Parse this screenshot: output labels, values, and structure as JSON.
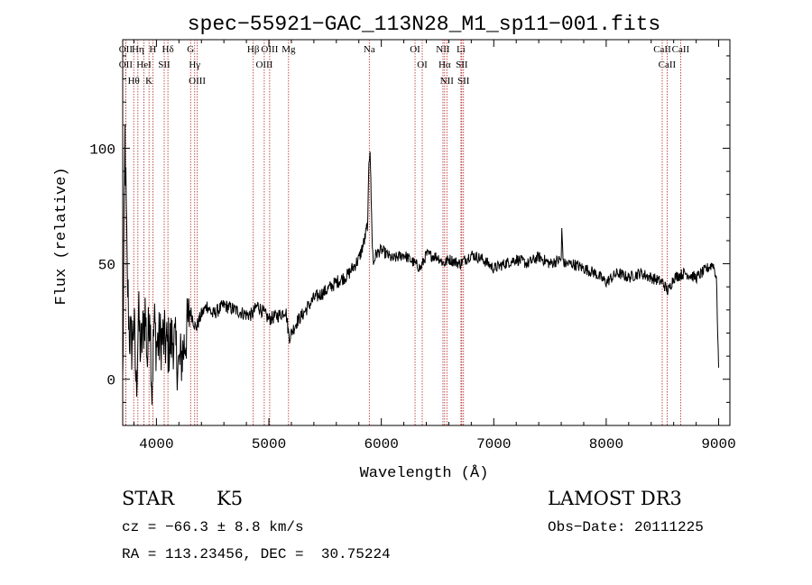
{
  "chart_data": {
    "type": "line",
    "title": "spec−55921−GAC_113N28_M1_sp11−001.fits",
    "xlabel": "Wavelength (Å)",
    "ylabel": "Flux (relative)",
    "xlim": [
      3700,
      9100
    ],
    "ylim": [
      -20,
      147
    ],
    "x_ticks": [
      4000,
      5000,
      6000,
      7000,
      8000,
      9000
    ],
    "x_tick_labels": [
      "4000",
      "5000",
      "6000",
      "7000",
      "8000",
      "9000"
    ],
    "y_ticks": [
      0,
      50,
      100
    ],
    "y_tick_labels": [
      "0",
      "50",
      "100"
    ],
    "series": [
      {
        "name": "spectrum",
        "color": "#000000",
        "x": [
          3700,
          3720,
          3740,
          3760,
          3780,
          3800,
          3820,
          3840,
          3860,
          3880,
          3900,
          3920,
          3940,
          3960,
          3980,
          4000,
          4050,
          4100,
          4150,
          4200,
          4250,
          4300,
          4350,
          4400,
          4450,
          4500,
          4600,
          4700,
          4800,
          4850,
          4900,
          5000,
          5100,
          5150,
          5180,
          5250,
          5300,
          5400,
          5500,
          5600,
          5700,
          5800,
          5850,
          5880,
          5890,
          5900,
          5910,
          5920,
          5930,
          5950,
          6000,
          6100,
          6200,
          6300,
          6350,
          6400,
          6500,
          6560,
          6600,
          6700,
          6800,
          6900,
          7000,
          7100,
          7200,
          7300,
          7400,
          7500,
          7600,
          7605,
          7620,
          7700,
          7800,
          7900,
          8000,
          8100,
          8200,
          8300,
          8400,
          8500,
          8550,
          8600,
          8700,
          8800,
          8900,
          8950,
          8980,
          9000
        ],
        "values": [
          -3,
          105,
          45,
          20,
          15,
          25,
          -5,
          28,
          12,
          20,
          30,
          8,
          35,
          -5,
          25,
          15,
          18,
          14,
          18,
          5,
          15,
          30,
          22,
          28,
          32,
          28,
          32,
          30,
          28,
          28,
          32,
          26,
          28,
          30,
          18,
          25,
          28,
          35,
          38,
          42,
          45,
          52,
          60,
          68,
          95,
          100,
          78,
          58,
          50,
          54,
          56,
          52,
          54,
          50,
          48,
          54,
          53,
          50,
          52,
          50,
          54,
          52,
          48,
          50,
          52,
          50,
          53,
          50,
          52,
          65,
          50,
          50,
          48,
          46,
          42,
          46,
          44,
          46,
          44,
          42,
          38,
          44,
          46,
          44,
          48,
          50,
          44,
          5
        ]
      }
    ],
    "lines": [
      {
        "name": "OII",
        "wavelength": 3727
      },
      {
        "name": "Hθ",
        "wavelength": 3798
      },
      {
        "name": "OII",
        "wavelength": 3727
      },
      {
        "name": "HeI",
        "wavelength": 3889
      },
      {
        "name": "Hη",
        "wavelength": 3835
      },
      {
        "name": "K",
        "wavelength": 3934
      },
      {
        "name": "H",
        "wavelength": 3968
      },
      {
        "name": "SII",
        "wavelength": 4069
      },
      {
        "name": "Hδ",
        "wavelength": 4102
      },
      {
        "name": "OIII",
        "wavelength": 4363
      },
      {
        "name": "Hγ",
        "wavelength": 4340
      },
      {
        "name": "G",
        "wavelength": 4304
      },
      {
        "name": "Hβ",
        "wavelength": 4861
      },
      {
        "name": "OIII",
        "wavelength": 4959
      },
      {
        "name": "OIII",
        "wavelength": 5007
      },
      {
        "name": "Mg",
        "wavelength": 5175
      },
      {
        "name": "Na",
        "wavelength": 5893
      },
      {
        "name": "OI",
        "wavelength": 6300
      },
      {
        "name": "OI",
        "wavelength": 6364
      },
      {
        "name": "Hα",
        "wavelength": 6563
      },
      {
        "name": "NII",
        "wavelength": 6548
      },
      {
        "name": "NII",
        "wavelength": 6583
      },
      {
        "name": "SII",
        "wavelength": 6716
      },
      {
        "name": "Li",
        "wavelength": 6708
      },
      {
        "name": "SII",
        "wavelength": 6731
      },
      {
        "name": "CaII",
        "wavelength": 8498
      },
      {
        "name": "CaII",
        "wavelength": 8542
      },
      {
        "name": "CaII",
        "wavelength": 8662
      }
    ]
  },
  "info": {
    "class": "STAR",
    "subclass": "K5",
    "survey": "LAMOST DR3",
    "cz": "cz = −66.3 ± 8.8 km/s",
    "obs_date": "Obs−Date: 20111225",
    "radec": "RA = 113.23456, DEC =  30.75224"
  },
  "colors": {
    "line_marker": "#b22222",
    "spectrum": "#000000",
    "axis": "#000000"
  }
}
